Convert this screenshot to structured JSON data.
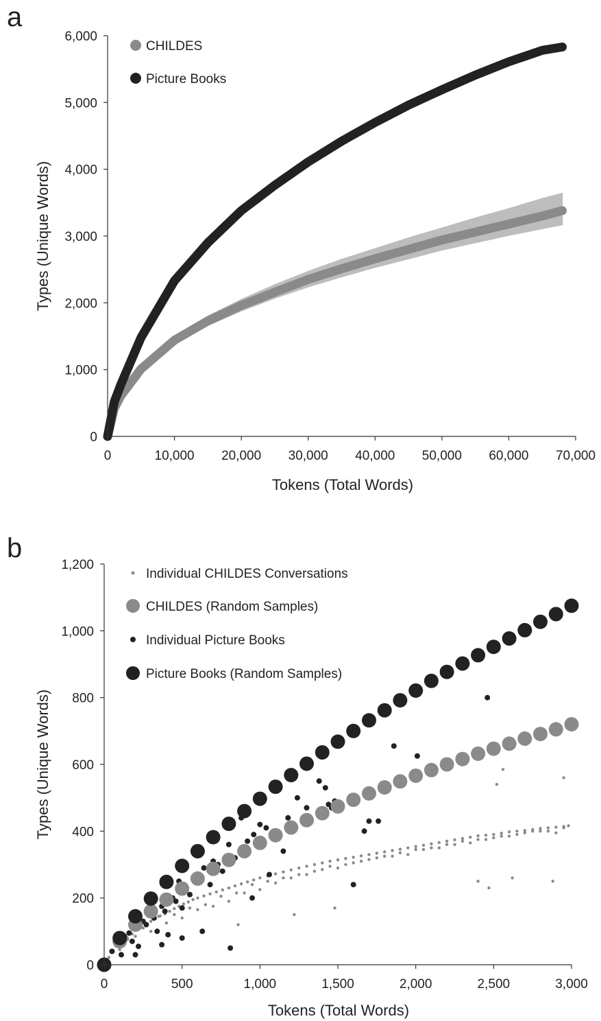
{
  "chart_data": [
    {
      "panel": "a",
      "type": "line",
      "xlabel": "Tokens (Total Words)",
      "ylabel": "Types (Unique Words)",
      "xlim": [
        0,
        70000
      ],
      "ylim": [
        0,
        6000
      ],
      "xticks": [
        0,
        10000,
        20000,
        30000,
        40000,
        50000,
        60000,
        70000
      ],
      "xtick_labels": [
        "0",
        "10,000",
        "20,000",
        "30,000",
        "40,000",
        "50,000",
        "60,000",
        "70,000"
      ],
      "yticks": [
        0,
        1000,
        2000,
        3000,
        4000,
        5000,
        6000
      ],
      "ytick_labels": [
        "0",
        "1,000",
        "2,000",
        "3,000",
        "4,000",
        "5,000",
        "6,000"
      ],
      "legend_position": "top-left",
      "grid": false,
      "series": [
        {
          "name": "CHILDES",
          "color": "#8a8a8a",
          "band_color": "#bdbdbd",
          "x": [
            0,
            1000,
            2000,
            5000,
            10000,
            15000,
            20000,
            25000,
            30000,
            35000,
            40000,
            45000,
            50000,
            55000,
            60000,
            65000,
            68000
          ],
          "y": [
            0,
            420,
            610,
            1010,
            1440,
            1730,
            1960,
            2160,
            2350,
            2510,
            2660,
            2800,
            2940,
            3060,
            3180,
            3300,
            3380
          ],
          "y_low": [
            0,
            400,
            580,
            960,
            1380,
            1660,
            1880,
            2070,
            2240,
            2390,
            2530,
            2660,
            2790,
            2900,
            3010,
            3110,
            3170
          ],
          "y_high": [
            0,
            440,
            640,
            1060,
            1500,
            1800,
            2050,
            2270,
            2470,
            2650,
            2810,
            2970,
            3120,
            3270,
            3410,
            3560,
            3640
          ]
        },
        {
          "name": "Picture Books",
          "color": "#222222",
          "x": [
            0,
            1000,
            2000,
            5000,
            10000,
            15000,
            20000,
            25000,
            30000,
            35000,
            40000,
            45000,
            50000,
            55000,
            60000,
            65000,
            68000
          ],
          "y": [
            0,
            520,
            780,
            1480,
            2330,
            2900,
            3380,
            3760,
            4110,
            4420,
            4700,
            4960,
            5190,
            5410,
            5610,
            5780,
            5830
          ]
        }
      ]
    },
    {
      "panel": "b",
      "type": "scatter",
      "xlabel": "Tokens (Total Words)",
      "ylabel": "Types (Unique Words)",
      "xlim": [
        0,
        3000
      ],
      "ylim": [
        0,
        1200
      ],
      "xticks": [
        0,
        500,
        1000,
        1500,
        2000,
        2500,
        3000
      ],
      "xtick_labels": [
        "0",
        "500",
        "1,000",
        "1,500",
        "2,000",
        "2,500",
        "3,000"
      ],
      "yticks": [
        0,
        200,
        400,
        600,
        800,
        1000,
        1200
      ],
      "ytick_labels": [
        "0",
        "200",
        "400",
        "600",
        "800",
        "1,000",
        "1,200"
      ],
      "legend_position": "top-left",
      "grid": false,
      "series": [
        {
          "name": "Individual CHILDES Conversations",
          "color": "#8a8a8a",
          "marker": "small-dot",
          "x": [
            30,
            60,
            90,
            120,
            150,
            180,
            210,
            240,
            270,
            300,
            330,
            360,
            390,
            420,
            450,
            480,
            510,
            540,
            570,
            600,
            640,
            680,
            720,
            760,
            800,
            840,
            880,
            920,
            960,
            1000,
            1050,
            1100,
            1150,
            1200,
            1250,
            1300,
            1350,
            1400,
            1450,
            1500,
            1550,
            1600,
            1650,
            1700,
            1750,
            1800,
            1850,
            1900,
            1950,
            2000,
            2050,
            2100,
            2150,
            2200,
            2250,
            2300,
            2350,
            2400,
            2450,
            2500,
            2550,
            2600,
            2650,
            2700,
            2750,
            2800,
            2850,
            2900,
            2950,
            2980,
            100,
            200,
            300,
            400,
            500,
            600,
            700,
            800,
            900,
            1000,
            1100,
            1200,
            1300,
            1400,
            1500,
            1600,
            1700,
            1800,
            1900,
            2000,
            2100,
            2200,
            2300,
            2400,
            2500,
            2600,
            2700,
            2800,
            2900,
            150,
            350,
            550,
            750,
            950,
            1150,
            1350,
            1550,
            1750,
            1950,
            2150,
            2350,
            2550,
            2750,
            2950,
            250,
            450,
            650,
            850,
            1050,
            1250,
            1450,
            1650,
            1850,
            2050,
            2250,
            2450,
            2650,
            2850,
            2560,
            2520,
            2470,
            1480,
            1220,
            860,
            2880,
            2950,
            2620,
            2400
          ],
          "y": [
            22,
            40,
            55,
            68,
            80,
            92,
            104,
            112,
            120,
            130,
            138,
            146,
            152,
            160,
            168,
            175,
            182,
            188,
            195,
            200,
            206,
            212,
            218,
            224,
            230,
            236,
            242,
            248,
            254,
            260,
            266,
            272,
            278,
            284,
            290,
            295,
            300,
            305,
            310,
            314,
            318,
            322,
            326,
            330,
            334,
            338,
            342,
            346,
            350,
            354,
            358,
            362,
            366,
            370,
            374,
            378,
            382,
            386,
            388,
            390,
            394,
            398,
            400,
            402,
            405,
            408,
            410,
            412,
            414,
            416,
            45,
            85,
            100,
            125,
            140,
            165,
            175,
            190,
            215,
            225,
            245,
            260,
            270,
            285,
            290,
            305,
            315,
            325,
            335,
            345,
            350,
            360,
            370,
            375,
            380,
            385,
            395,
            400,
            395,
            75,
            145,
            170,
            205,
            240,
            260,
            280,
            300,
            320,
            330,
            350,
            365,
            385,
            400,
            410,
            110,
            150,
            180,
            215,
            250,
            270,
            295,
            310,
            325,
            345,
            360,
            375,
            390,
            400,
            585,
            540,
            230,
            170,
            150,
            120,
            250,
            560,
            260,
            250
          ]
        },
        {
          "name": "CHILDES (Random Samples)",
          "color": "#8a8a8a",
          "marker": "large-dot",
          "x": [
            0,
            100,
            200,
            300,
            400,
            500,
            600,
            700,
            800,
            900,
            1000,
            1100,
            1200,
            1300,
            1400,
            1500,
            1600,
            1700,
            1800,
            1900,
            2000,
            2100,
            2200,
            2300,
            2400,
            2500,
            2600,
            2700,
            2800,
            2900,
            3000
          ],
          "y": [
            0,
            70,
            120,
            160,
            195,
            228,
            258,
            287,
            314,
            340,
            365,
            388,
            411,
            433,
            454,
            474,
            494,
            513,
            531,
            549,
            566,
            583,
            600,
            616,
            632,
            647,
            662,
            677,
            691,
            705,
            720
          ]
        },
        {
          "name": "Individual Picture Books",
          "color": "#222222",
          "marker": "small-dot",
          "x": [
            50,
            80,
            110,
            130,
            160,
            180,
            200,
            220,
            250,
            270,
            300,
            320,
            340,
            370,
            390,
            410,
            440,
            460,
            480,
            500,
            520,
            550,
            580,
            600,
            640,
            680,
            700,
            730,
            760,
            800,
            840,
            880,
            920,
            960,
            1000,
            1040,
            1080,
            1100,
            1180,
            1200,
            1240,
            1300,
            1380,
            1420,
            1440,
            1460,
            1480,
            1600,
            1670,
            1700,
            1760,
            1860,
            2010,
            2460,
            200,
            370,
            500,
            630,
            810,
            950,
            1060,
            1150
          ],
          "y": [
            40,
            60,
            30,
            85,
            95,
            70,
            110,
            55,
            130,
            120,
            150,
            140,
            100,
            175,
            160,
            90,
            200,
            190,
            250,
            170,
            230,
            210,
            260,
            270,
            290,
            240,
            310,
            300,
            280,
            360,
            320,
            440,
            370,
            390,
            420,
            410,
            380,
            400,
            440,
            420,
            500,
            470,
            550,
            530,
            480,
            470,
            490,
            240,
            400,
            430,
            430,
            655,
            625,
            800,
            30,
            60,
            80,
            100,
            50,
            200,
            270,
            340
          ]
        },
        {
          "name": "Picture Books (Random Samples)",
          "color": "#222222",
          "marker": "large-dot",
          "x": [
            0,
            100,
            200,
            300,
            400,
            500,
            600,
            700,
            800,
            900,
            1000,
            1100,
            1200,
            1300,
            1400,
            1500,
            1600,
            1700,
            1800,
            1900,
            2000,
            2100,
            2200,
            2300,
            2400,
            2500,
            2600,
            2700,
            2800,
            2900,
            3000
          ],
          "y": [
            0,
            80,
            145,
            198,
            248,
            296,
            340,
            382,
            422,
            460,
            497,
            533,
            568,
            602,
            636,
            668,
            700,
            732,
            762,
            792,
            821,
            850,
            877,
            902,
            927,
            952,
            977,
            1002,
            1027,
            1050,
            1075
          ]
        }
      ]
    }
  ]
}
